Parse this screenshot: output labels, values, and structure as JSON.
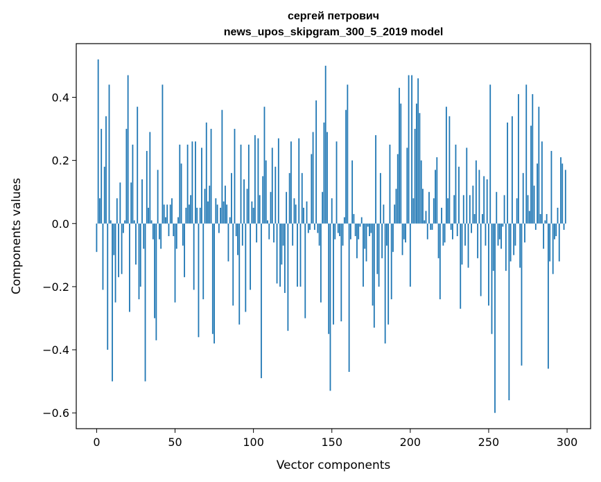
{
  "chart_data": {
    "type": "bar",
    "title": [
      "сергей петрович",
      "news_upos_skipgram_300_5_2019 model"
    ],
    "xlabel": "Vector components",
    "ylabel": "Components values",
    "xlim": [
      -13,
      315
    ],
    "ylim": [
      -0.65,
      0.57
    ],
    "xticks": [
      0,
      50,
      100,
      150,
      200,
      250,
      300
    ],
    "yticks": [
      -0.6,
      -0.4,
      -0.2,
      0.0,
      0.2,
      0.4
    ],
    "ytick_labels": [
      "−0.6",
      "−0.4",
      "−0.2",
      "0.0",
      "0.2",
      "0.4"
    ],
    "color": "#1f77b4",
    "values": [
      -0.09,
      0.52,
      0.08,
      0.3,
      -0.21,
      0.18,
      0.34,
      -0.4,
      0.44,
      0.01,
      -0.5,
      -0.1,
      -0.25,
      0.08,
      -0.17,
      0.13,
      -0.16,
      -0.03,
      0.01,
      0.3,
      0.47,
      -0.28,
      0.13,
      0.25,
      0.01,
      -0.13,
      0.37,
      -0.24,
      -0.2,
      0.14,
      -0.08,
      -0.5,
      0.23,
      0.05,
      0.29,
      0.01,
      -0.05,
      -0.3,
      -0.37,
      0.17,
      -0.05,
      -0.08,
      0.44,
      0.06,
      0.02,
      0.06,
      -0.04,
      0.06,
      0.08,
      -0.04,
      -0.25,
      -0.08,
      0.02,
      0.25,
      0.19,
      -0.07,
      -0.17,
      0.05,
      0.25,
      0.06,
      0.09,
      0.26,
      -0.21,
      0.26,
      0.05,
      -0.36,
      0.05,
      0.24,
      -0.24,
      0.11,
      0.32,
      0.07,
      0.12,
      0.3,
      -0.35,
      -0.38,
      0.08,
      0.06,
      -0.03,
      0.05,
      0.36,
      0.07,
      0.12,
      0.06,
      -0.12,
      0.02,
      0.16,
      -0.26,
      0.3,
      -0.04,
      -0.1,
      -0.32,
      0.25,
      -0.07,
      0.14,
      -0.28,
      0.11,
      0.25,
      -0.21,
      0.07,
      0.05,
      0.28,
      -0.06,
      0.27,
      0.09,
      -0.49,
      0.15,
      0.37,
      0.2,
      0.01,
      -0.05,
      0.1,
      0.24,
      -0.06,
      0.18,
      -0.19,
      0.27,
      -0.2,
      -0.13,
      -0.07,
      -0.22,
      0.1,
      -0.34,
      0.16,
      0.26,
      -0.07,
      0.08,
      0.06,
      -0.2,
      0.27,
      -0.2,
      0.16,
      0.05,
      -0.3,
      0.07,
      -0.03,
      -0.02,
      0.22,
      0.29,
      -0.02,
      0.39,
      -0.03,
      -0.07,
      -0.25,
      0.1,
      0.32,
      0.5,
      0.29,
      -0.35,
      -0.53,
      0.08,
      -0.32,
      -0.05,
      0.26,
      -0.03,
      -0.04,
      -0.31,
      -0.07,
      0.02,
      0.36,
      0.44,
      -0.47,
      -0.05,
      0.2,
      0.03,
      -0.04,
      -0.11,
      -0.05,
      -0.01,
      0.02,
      -0.2,
      -0.08,
      -0.12,
      -0.01,
      -0.04,
      -0.03,
      -0.26,
      -0.33,
      0.28,
      -0.16,
      -0.2,
      0.16,
      -0.11,
      0.06,
      -0.38,
      -0.07,
      -0.32,
      0.25,
      -0.24,
      -0.09,
      0.06,
      0.11,
      0.22,
      0.43,
      0.38,
      -0.1,
      -0.05,
      -0.06,
      0.24,
      0.47,
      -0.2,
      0.47,
      0.08,
      0.3,
      0.38,
      0.46,
      0.35,
      0.2,
      0.11,
      0.01,
      0.04,
      -0.05,
      0.1,
      -0.02,
      -0.02,
      0.08,
      0.17,
      0.21,
      -0.11,
      -0.24,
      0.05,
      -0.07,
      -0.06,
      0.37,
      0.08,
      0.34,
      -0.02,
      -0.05,
      0.09,
      0.25,
      -0.04,
      0.18,
      -0.27,
      -0.13,
      0.09,
      -0.07,
      0.24,
      -0.14,
      0.09,
      -0.03,
      0.12,
      0.03,
      0.2,
      -0.11,
      0.17,
      -0.23,
      0.03,
      0.15,
      -0.07,
      0.14,
      -0.26,
      0.44,
      -0.35,
      -0.15,
      -0.6,
      0.1,
      -0.07,
      -0.05,
      -0.08,
      -0.01,
      0.09,
      -0.15,
      0.32,
      -0.56,
      -0.12,
      0.34,
      -0.1,
      -0.07,
      0.08,
      0.41,
      -0.14,
      -0.45,
      0.16,
      -0.06,
      0.44,
      0.09,
      0.04,
      0.31,
      0.41,
      0.12,
      -0.02,
      0.19,
      0.37,
      0.03,
      0.26,
      -0.08,
      0.01,
      0.03,
      -0.46,
      -0.12,
      0.23,
      -0.16,
      -0.05,
      -0.04,
      0.05,
      -0.12,
      0.21,
      0.19,
      -0.02,
      0.17
    ]
  }
}
